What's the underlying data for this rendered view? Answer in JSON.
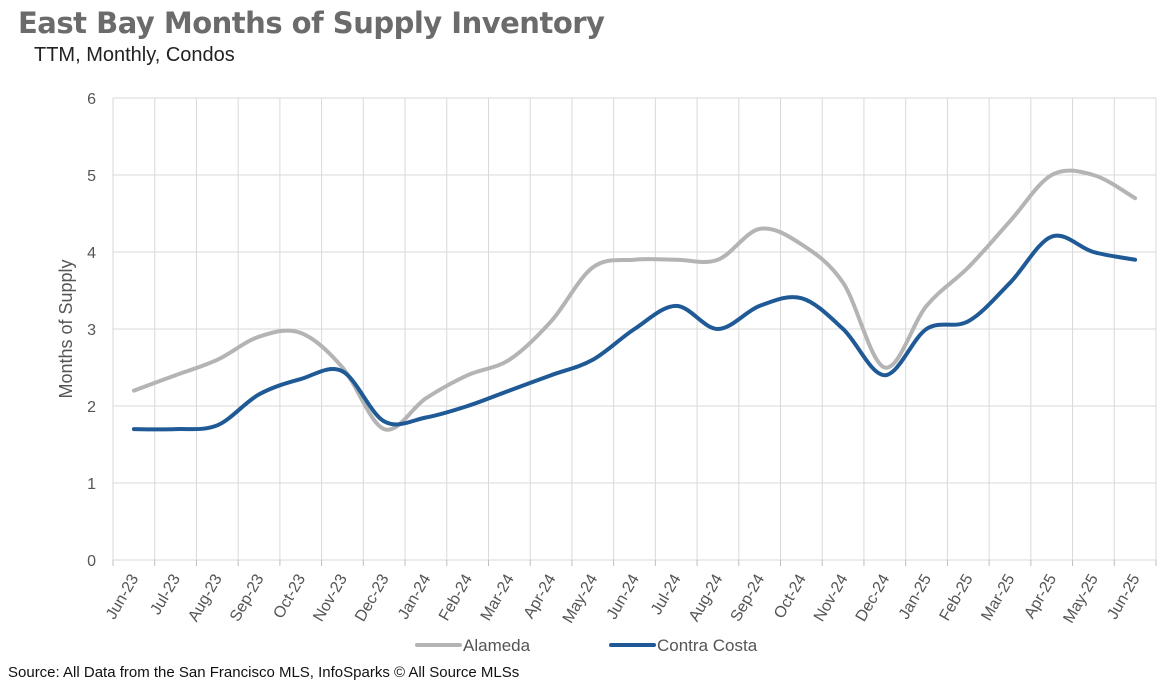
{
  "header": {
    "title": "East Bay Months of Supply Inventory",
    "subtitle": "TTM, Monthly, Condos"
  },
  "footer": {
    "source": "Source: All Data from the San Francisco MLS, InfoSparks © All Source MLSs"
  },
  "chart_data": {
    "type": "line",
    "title": "East Bay Months of Supply Inventory",
    "subtitle": "TTM, Monthly, Condos",
    "xlabel": "",
    "ylabel": "Months of Supply",
    "ylim": [
      0,
      6
    ],
    "yticks": [
      0,
      1,
      2,
      3,
      4,
      5,
      6
    ],
    "grid": true,
    "legend": "bottom",
    "categories": [
      "Jun-23",
      "Jul-23",
      "Aug-23",
      "Sep-23",
      "Oct-23",
      "Nov-23",
      "Dec-23",
      "Jan-24",
      "Feb-24",
      "Mar-24",
      "Apr-24",
      "May-24",
      "Jun-24",
      "Jul-24",
      "Aug-24",
      "Sep-24",
      "Oct-24",
      "Nov-24",
      "Dec-24",
      "Jan-25",
      "Feb-25",
      "Mar-25",
      "Apr-25",
      "May-25",
      "Jun-25"
    ],
    "series": [
      {
        "name": "Alameda",
        "color": "#b4b4b4",
        "values": [
          2.2,
          2.4,
          2.6,
          2.9,
          2.95,
          2.5,
          1.7,
          2.1,
          2.4,
          2.6,
          3.1,
          3.8,
          3.9,
          3.9,
          3.9,
          4.3,
          4.1,
          3.6,
          2.5,
          3.3,
          3.8,
          4.4,
          5.0,
          5.0,
          4.7
        ]
      },
      {
        "name": "Contra Costa",
        "color": "#1f5a96",
        "values": [
          1.7,
          1.7,
          1.75,
          2.15,
          2.35,
          2.45,
          1.8,
          1.85,
          2.0,
          2.2,
          2.4,
          2.6,
          3.0,
          3.3,
          3.0,
          3.3,
          3.4,
          3.0,
          2.4,
          3.0,
          3.1,
          3.6,
          4.2,
          4.0,
          3.9
        ]
      }
    ]
  }
}
